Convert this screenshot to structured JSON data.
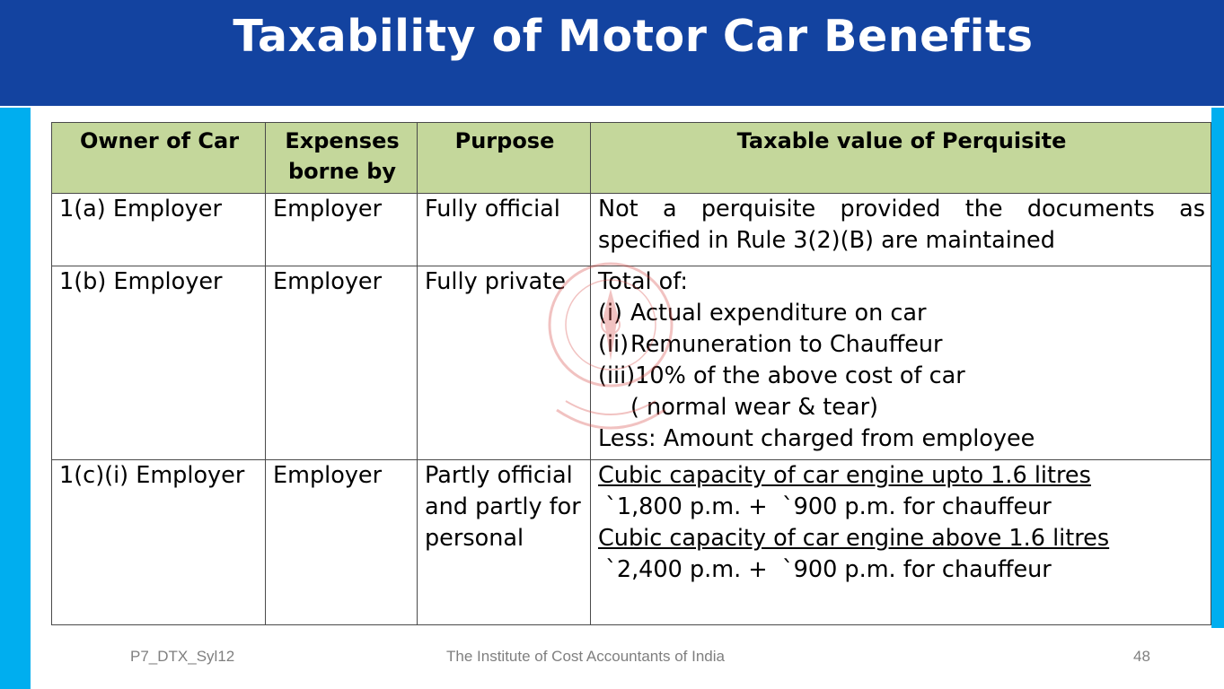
{
  "title": "Taxability of Motor Car Benefits",
  "table": {
    "headers": [
      "Owner of Car",
      "Expenses borne by",
      "Purpose",
      "Taxable value of Perquisite"
    ],
    "rows": [
      {
        "owner": "1(a)  Employer",
        "expenses": "Employer",
        "purpose": "Fully official",
        "value_text": "Not a perquisite provided the documents as specified in Rule 3(2)(B)  are maintained"
      },
      {
        "owner": "1(b)  Employer",
        "expenses": "Employer",
        "purpose": "Fully private",
        "value_intro": "Total of:",
        "value_items": [
          {
            "marker": "(i)",
            "text": "Actual expenditure on car"
          },
          {
            "marker": "(ii)",
            "text": "Remuneration to Chauffeur"
          },
          {
            "marker": "(iii)",
            "text": "10% of the above cost of car"
          }
        ],
        "value_note": "( normal wear & tear)",
        "value_less": "Less: Amount charged from employee"
      },
      {
        "owner": "1(c)(i) Employer",
        "expenses": "Employer",
        "purpose": "Partly official and partly for personal",
        "value_lines": [
          {
            "text": "Cubic capacity of car engine upto 1.6 litres",
            "underline": true
          },
          {
            "text": " `1,800 p.m. +  `900 p.m. for chauffeur",
            "underline": false
          },
          {
            "text": "Cubic capacity of car engine above 1.6 litres",
            "underline": true
          },
          {
            "text": " `2,400 p.m. +  `900 p.m. for chauffeur",
            "underline": false
          }
        ]
      }
    ]
  },
  "footer": {
    "left": "P7_DTX_Syl12",
    "center": "The Institute of Cost Accountants of India",
    "page_number": "48"
  },
  "colors": {
    "title_bar": "#1343a0",
    "side_strip": "#00aeef",
    "header_fill": "#c4d79b"
  },
  "icons": [
    "institute-seal-watermark"
  ]
}
